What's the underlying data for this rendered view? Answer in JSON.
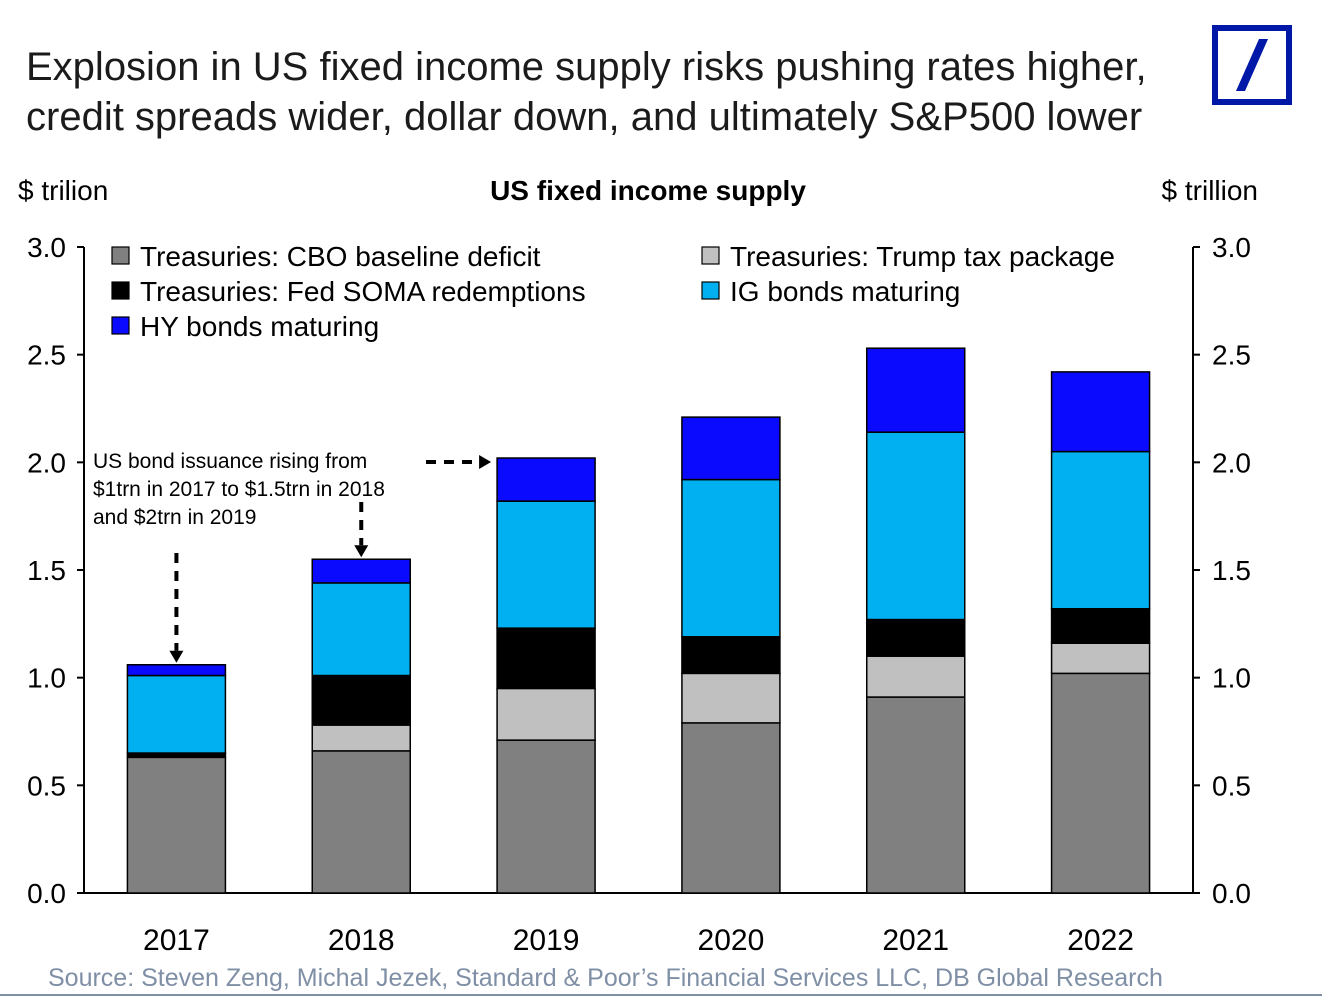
{
  "headline": {
    "line1": "Explosion in US fixed income supply risks pushing rates higher,",
    "line2": "credit spreads wider, dollar down, and ultimately S&P500 lower"
  },
  "logo": {
    "icon": "deutsche-bank-logo-icon",
    "color": "#0018a8"
  },
  "source": "Source:  Steven Zeng, Michal Jezek, Standard  & Poor’s Financial Services LLC, DB Global Research",
  "chart_data": {
    "type": "bar",
    "stacked": true,
    "title": "US fixed income supply",
    "ylabel_left": "$ trilion",
    "ylabel_right": "$ trillion",
    "ylim": [
      0,
      3.0
    ],
    "yticks": [
      "0.0",
      "0.5",
      "1.0",
      "1.5",
      "2.0",
      "2.5",
      "3.0"
    ],
    "categories": [
      "2017",
      "2018",
      "2019",
      "2020",
      "2021",
      "2022"
    ],
    "series": [
      {
        "name": "Treasuries: CBO baseline deficit",
        "color": "#808080",
        "values": [
          0.63,
          0.66,
          0.71,
          0.79,
          0.91,
          1.02
        ]
      },
      {
        "name": "Treasuries: Trump tax package",
        "color": "#c0c0c0",
        "values": [
          0.0,
          0.12,
          0.24,
          0.23,
          0.19,
          0.14
        ]
      },
      {
        "name": "Treasuries: Fed SOMA redemptions",
        "color": "#000000",
        "values": [
          0.02,
          0.23,
          0.28,
          0.17,
          0.17,
          0.16
        ]
      },
      {
        "name": "IG bonds maturing",
        "color": "#00b0f0",
        "values": [
          0.36,
          0.43,
          0.59,
          0.73,
          0.87,
          0.73
        ]
      },
      {
        "name": "HY bonds maturing",
        "color": "#0a0aff",
        "values": [
          0.05,
          0.11,
          0.2,
          0.29,
          0.39,
          0.37
        ]
      }
    ],
    "legend_position": "top",
    "annotation": {
      "lines": [
        "US bond issuance rising from",
        "$1trn in 2017 to $1.5trn in 2018",
        "and $2trn in 2019"
      ],
      "points_to": [
        "2017",
        "2018",
        "2019"
      ]
    },
    "grid": false
  }
}
